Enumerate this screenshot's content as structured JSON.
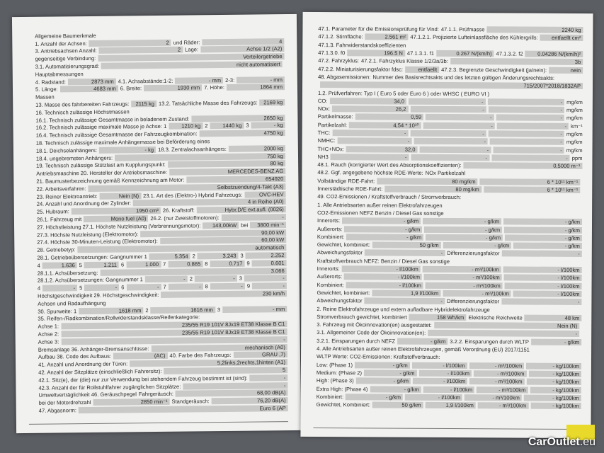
{
  "left_page": [
    [
      {
        "l": "Allgemeine Baumerkmale"
      },
      {
        "l": ""
      }
    ],
    [
      {
        "l": "1. Anzahl der Achsen:"
      },
      {
        "v": "2"
      },
      {
        "l": "und Räder:"
      },
      {
        "v": "4"
      }
    ],
    [
      {
        "l": "3. Antriebsachsen   Anzahl:"
      },
      {
        "v": "2"
      },
      {
        "l": "Lage:"
      },
      {
        "v": "Achse 1/2 (A2)"
      }
    ],
    [
      {
        "l": "gegenseitige Verbindung:"
      },
      {
        "v": "Verteilergetriebe"
      }
    ],
    [
      {
        "l": "3.1. Automatisierungsgrad:"
      },
      {
        "v": "nicht automatisiert"
      },
      {
        "l": "                                                  "
      }
    ],
    [
      {
        "l": "Hauptabmessungen"
      }
    ],
    [
      {
        "l": "4. Radstand:"
      },
      {
        "v": "2873   mm"
      },
      {
        "l": "4.1. Achsabstände:1-2:"
      },
      {
        "v": "-   mm"
      },
      {
        "l": "2-3:"
      },
      {
        "v": "-   mm"
      }
    ],
    [
      {
        "l": "5. Länge:"
      },
      {
        "v": "4683   mm"
      },
      {
        "l": "6. Breite:"
      },
      {
        "v": "1930   mm"
      },
      {
        "l": "7. Höhe:"
      },
      {
        "v": "1864   mm"
      }
    ],
    [
      {
        "l": "Massen"
      }
    ],
    [
      {
        "l": "13. Masse des fahrbereiten Fahrzeugs:"
      },
      {
        "v": "2115   kg"
      },
      {
        "l": "13.2. Tatsächliche Masse des Fahrzeugs:"
      },
      {
        "v": "2169   kg"
      }
    ],
    [
      {
        "l": "16. Technisch zulässige Höchstmassen"
      }
    ],
    [
      {
        "l": "16.1. Technisch zulässige Gesamtmasse in beladenem Zustand:"
      },
      {
        "v": "2650   kg"
      }
    ],
    [
      {
        "l": "16.2. Technisch zulässige maximale Masse je Achse:   1"
      },
      {
        "v": "1210   kg"
      },
      {
        "l": "2"
      },
      {
        "v": "1440   kg"
      },
      {
        "l": "3"
      },
      {
        "v": "-   kg"
      }
    ],
    [
      {
        "l": "16.4. Technisch zulässige Gesamtmasse der Fahrzeugkombination:"
      },
      {
        "v": "4750   kg"
      }
    ],
    [
      {
        "l": "18. Technisch zulässige maximale Anhängemasse bei Beförderung eines"
      }
    ],
    [
      {
        "l": "18.1. Deichselanhängers:"
      },
      {
        "v": "-   kg"
      },
      {
        "l": "18.3. Zentralachsanhängers:"
      },
      {
        "v": "2000   kg"
      }
    ],
    [
      {
        "l": "18.4. ungebremsten Anhängers:"
      },
      {
        "v": "750   kg"
      }
    ],
    [
      {
        "l": "19. Technisch zulässige Stützlast am Kupplungspunkt:"
      },
      {
        "v": "80   kg"
      }
    ],
    [
      {
        "l": "Antriebsmaschine   20. Hersteller der Antriebsmaschine:"
      },
      {
        "v": "MERCEDES-BENZ AG"
      }
    ],
    [
      {
        "l": "21. Baumusterbezeichnung gemäß Kennzeichnung am Motor:"
      },
      {
        "v": "654920"
      }
    ],
    [
      {
        "l": "22. Arbeitsverfahren:"
      },
      {
        "v": "Selbstzuendung/4-Takt (A3)"
      }
    ],
    [
      {
        "l": "23. Reiner Elektroantrieb:"
      },
      {
        "v": "Nein (N)"
      },
      {
        "l": "23.1. Art des (Elektro-) Hybrid Fahrzeugs:"
      },
      {
        "v": "OVC-HEV"
      }
    ],
    [
      {
        "l": "24. Anzahl und Anordnung der Zylinder:"
      },
      {
        "v": "4 in Reihe (A0)"
      }
    ],
    [
      {
        "l": "25. Hubraum:"
      },
      {
        "v": "1950   cm³"
      },
      {
        "l": "26. Kraftstoff:"
      },
      {
        "v": "Hybr.D/E ext.aufl. (0026)"
      }
    ],
    [
      {
        "l": "26.1. Fahrzeug mit"
      },
      {
        "v": "Mono fuel (A0)"
      },
      {
        "l": "26.2. (nur Zweistoffmotoren):"
      },
      {
        "v": "-"
      }
    ],
    [
      {
        "l": "27. Höchstleistung   27.1. Höchste Nutzleistung (Verbrennungsmotor):"
      },
      {
        "v": "143,00kW"
      },
      {
        "l": "bei"
      },
      {
        "v": "3800 min⁻¹"
      }
    ],
    [
      {
        "l": "27.3. Höchste Nutzleistung (Elektromotor):"
      },
      {
        "v": "90,00   kW"
      }
    ],
    [
      {
        "l": "27.4. Höchste 30-Minuten-Leistung (Elektromotor):"
      },
      {
        "v": "60,00   kW"
      }
    ],
    [
      {
        "l": "28. Getriebetyp:"
      },
      {
        "v": "automatisch"
      }
    ],
    [
      {
        "l": "28.1. Getriebeübersetzungen: Gangnummer   1"
      },
      {
        "v": "5.354"
      },
      {
        "l": "2"
      },
      {
        "v": "3.243"
      },
      {
        "l": "3"
      },
      {
        "v": "2.252"
      }
    ],
    [
      {
        "l": "   4"
      },
      {
        "v": "1.636"
      },
      {
        "l": "5"
      },
      {
        "v": "1.211"
      },
      {
        "l": "6"
      },
      {
        "v": "1.000"
      },
      {
        "l": "7"
      },
      {
        "v": "0.865"
      },
      {
        "l": "8"
      },
      {
        "v": "0.717"
      },
      {
        "l": "9"
      },
      {
        "v": "0.601"
      }
    ],
    [
      {
        "l": "28.1.1. Achsübersetzung:"
      },
      {
        "v": "3.066"
      }
    ],
    [
      {
        "l": "28.1.2. Achsübersetzungen: Gangnummer   1"
      },
      {
        "v": "-"
      },
      {
        "l": "2"
      },
      {
        "v": "-"
      },
      {
        "l": "3"
      },
      {
        "v": "-"
      }
    ],
    [
      {
        "l": "   4"
      },
      {
        "v": "-"
      },
      {
        "l": "5"
      },
      {
        "v": "-"
      },
      {
        "l": "6"
      },
      {
        "v": "-"
      },
      {
        "l": "7"
      },
      {
        "v": "-"
      },
      {
        "l": "8"
      },
      {
        "v": "-"
      },
      {
        "l": "9"
      },
      {
        "v": "-"
      }
    ],
    [
      {
        "l": "Höchstgeschwindigkeit   29. Höchstgeschwindigkeit:"
      },
      {
        "v": "230   km/h"
      }
    ],
    [
      {
        "l": "Achsen und Radaufhängung"
      }
    ],
    [
      {
        "l": "30. Spurweite:   1"
      },
      {
        "v": "1618   mm"
      },
      {
        "l": "2"
      },
      {
        "v": "1616   mm"
      },
      {
        "l": "3"
      },
      {
        "v": "-   mm"
      }
    ],
    [
      {
        "l": "35. Reifen-/Radkombination/Rollwiderstandsklasse/Reifenkategorie:"
      }
    ],
    [
      {
        "l": "      Achse 1:"
      },
      {
        "v": "235/55 R19 101V    8Jx19 ET38    Klasse B    C1"
      }
    ],
    [
      {
        "l": "      Achse 2:"
      },
      {
        "v": "235/55 R19 101V    8Jx19 ET38    Klasse B    C1"
      }
    ],
    [
      {
        "l": "      Achse 3:"
      },
      {
        "v": "-"
      }
    ],
    [
      {
        "l": "Bremsanlage   36. Anhänger-Bremsanschlüsse:"
      },
      {
        "v": "mechanisch (A0)"
      }
    ],
    [
      {
        "l": "Aufbau  38. Code des Aufbaus:"
      },
      {
        "v": "(AC)"
      },
      {
        "l": "40. Farbe des Fahrzeugs:"
      },
      {
        "v": "GRAU ,7)"
      }
    ],
    [
      {
        "l": "41. Anzahl und Anordnung der Türen:"
      },
      {
        "v": "5,2links,2rechts,1hinten (A1)"
      }
    ],
    [
      {
        "l": "42. Anzahl der Sitzplätze (einschließlich Fahrersitz):"
      },
      {
        "v": "5"
      }
    ],
    [
      {
        "l": "42.1. Sitz(e), der (die) nur zur Verwendung bei stehendem Fahrzeug bestimmt ist (sind):"
      },
      {
        "v": "-"
      }
    ],
    [
      {
        "l": "42.3. Anzahl der für Rollstuhlfahrer zugänglichen Sitzplätze:"
      },
      {
        "v": "-"
      }
    ],
    [
      {
        "l": "Umweltverträglichkeit      46. Geräuschpegel"
      },
      {
        "l": "Fahrgeräusch:"
      },
      {
        "v": "68,00   dB(A)"
      }
    ],
    [
      {
        "l": "      bei der Motordrehzahl"
      },
      {
        "v": "2850   min⁻¹"
      },
      {
        "l": "Standgeräusch:"
      },
      {
        "v": "76,20   dB(A)"
      }
    ],
    [
      {
        "l": "47. Abgasnorm:"
      },
      {
        "v": "Euro 6 (AP"
      }
    ]
  ],
  "right_page": [
    [
      {
        "l": "47.1. Parameter für die Emissionsprüfung für Vind:"
      },
      {
        "l": "            47.1.1. Prüfmasse"
      },
      {
        "v": "2240   kg"
      }
    ],
    [
      {
        "l": "47.1.2. Stirnfläche:"
      },
      {
        "v": "2.561  m²"
      },
      {
        "l": "47.1.2.1. Projizierte Lufteinlassfläche des Kühlergrills:"
      },
      {
        "v": "entfaellt  cm²"
      }
    ],
    [
      {
        "l": "47.1.3. Fahrwiderstandskoeffizienten"
      }
    ],
    [
      {
        "l": "47.1.3.0. f0"
      },
      {
        "v": "196.5   N"
      },
      {
        "l": "47.1.3.1. f1"
      },
      {
        "v": "0.267  N/(km/h)"
      },
      {
        "l": "47.1.3.2. f2"
      },
      {
        "v": "0.04286  N/(km/h)²"
      }
    ],
    [
      {
        "l": "47.2. Fahrzyklus:"
      },
      {
        "l": "                          47.2.1. Fahrzyklus Klasse 1/2/3a/3b:"
      },
      {
        "v": "3b"
      }
    ],
    [
      {
        "l": "47.2.2. Miniaturisierungsfaktor fdsc:"
      },
      {
        "v": "entfaellt"
      },
      {
        "l": "47.2.3. Begrenzte Geschwindigkeit (ja/nein):"
      },
      {
        "v": "nein"
      }
    ],
    [
      {
        "l": "48. Abgasemissionen:"
      },
      {
        "l": "      Nummer des Basisrechtsakts und des letzten gültigen Änderungsrechtsakts:"
      }
    ],
    [
      {
        "l": "                                                                                       "
      },
      {
        "v": "715/2007*2018/1832AP"
      }
    ],
    [
      {
        "l": "1.2. Prüfverfahren: Typ I ( Euro 5 oder Euro 6 ) oder WHSC ( EURO VI )"
      }
    ],
    [
      {
        "l": "   CO:                  "
      },
      {
        "v": "34,0"
      },
      {
        "v": "-"
      },
      {
        "v": "-"
      },
      {
        "l": "mg/km          "
      }
    ],
    [
      {
        "l": "   NOx:                 "
      },
      {
        "v": "26,2"
      },
      {
        "v": "-"
      },
      {
        "v": "-"
      },
      {
        "l": "mg/km          "
      }
    ],
    [
      {
        "l": "   Partikelmasse:   "
      },
      {
        "v": "0,59"
      },
      {
        "v": "-"
      },
      {
        "v": "-"
      },
      {
        "l": "mg/km          "
      }
    ],
    [
      {
        "l": "   Partikelzahl:      "
      },
      {
        "v": "4,54 * 10¹⁰"
      },
      {
        "v": "-"
      },
      {
        "v": "-"
      },
      {
        "l": "km⁻¹             "
      }
    ],
    [
      {
        "l": "   THC:                "
      },
      {
        "v": "-"
      },
      {
        "v": "-"
      },
      {
        "v": "-"
      },
      {
        "l": "mg/km          "
      }
    ],
    [
      {
        "l": "   NMHC:              "
      },
      {
        "v": "-"
      },
      {
        "v": "-"
      },
      {
        "v": "-"
      },
      {
        "l": "mg/km          "
      }
    ],
    [
      {
        "l": "   THC+NOx:          "
      },
      {
        "v": "32,0"
      },
      {
        "v": "-"
      },
      {
        "v": "-"
      },
      {
        "l": "mg/km          "
      }
    ],
    [
      {
        "l": "   NH3                  "
      },
      {
        "v": "-"
      },
      {
        "v": "-"
      },
      {
        "v": "-"
      },
      {
        "l": "ppm              "
      }
    ],
    [
      {
        "l": "48.1. Rauch (korrigierter Wert des Absorptionskoeffizienten):"
      },
      {
        "v": "0,5000   m⁻¹"
      }
    ],
    [
      {
        "l": "48.2. Ggf. angegebene höchste RDE-Werte:"
      },
      {
        "l": "                 NOx                          Partikelzahl"
      }
    ],
    [
      {
        "l": "   Vollständige RDE-Fahrt:                              "
      },
      {
        "v": "80   mg/km"
      },
      {
        "v": "6 * 10¹¹   km⁻¹"
      },
      {
        "l": "          "
      }
    ],
    [
      {
        "l": "   Innerstädtische RDE-Fahrt:                          "
      },
      {
        "v": "80   mg/km"
      },
      {
        "v": "6 * 10¹¹   km⁻¹"
      },
      {
        "l": "          "
      }
    ],
    [
      {
        "l": "49. CO2-Emissionen / Kraftstoffverbrauch / Stromverbrauch:"
      }
    ],
    [
      {
        "l": "   1. Alle Antriebsarten außer reinen Elektrofahrzeugen"
      }
    ],
    [
      {
        "l": "   CO2-Emissionen NEFZ          Benzin / Diesel                              Gas                                   sonstige"
      }
    ],
    [
      {
        "l": "   Innerorts:                  "
      },
      {
        "v": "-   g/km"
      },
      {
        "v": "-   g/km"
      },
      {
        "v": "-   g/km"
      }
    ],
    [
      {
        "l": "   Außerorts:                  "
      },
      {
        "v": "-   g/km"
      },
      {
        "v": "-   g/km"
      },
      {
        "v": "-   g/km"
      }
    ],
    [
      {
        "l": "   Kombiniert:                 "
      },
      {
        "v": "-   g/km"
      },
      {
        "v": "-   g/km"
      },
      {
        "v": "-   g/km"
      }
    ],
    [
      {
        "l": "   Gewichtet, kombiniert:  "
      },
      {
        "v": "50   g/km"
      },
      {
        "v": "-   g/km"
      },
      {
        "v": "-   g/km"
      }
    ],
    [
      {
        "l": "   Abweichungsfaktor        "
      },
      {
        "v": "-"
      },
      {
        "l": "   Differenzierungsfaktor      "
      },
      {
        "v": "-"
      }
    ],
    [
      {
        "l": "   Kraftstoffverbrauch NEFZ:       Benzin / Diesel                              Gas                                   sonstige"
      }
    ],
    [
      {
        "l": "   Innerorts:                  "
      },
      {
        "v": "-   l/100km"
      },
      {
        "v": "-   m³/100km"
      },
      {
        "v": "-   l/100km"
      }
    ],
    [
      {
        "l": "   Außerorts:                  "
      },
      {
        "v": "-   l/100km"
      },
      {
        "v": "-   m³/100km"
      },
      {
        "v": "-   l/100km"
      }
    ],
    [
      {
        "l": "   Kombiniert:                 "
      },
      {
        "v": "-   l/100km"
      },
      {
        "v": "-   m³/100km"
      },
      {
        "v": "-   l/100km"
      }
    ],
    [
      {
        "l": "   Gewichtet, kombiniert:  "
      },
      {
        "v": "1,9   l/100km"
      },
      {
        "v": "-   m³/100km"
      },
      {
        "v": "-   l/100km"
      }
    ],
    [
      {
        "l": "   Abweichungsfaktor        "
      },
      {
        "v": "-"
      },
      {
        "l": "   Differenzierungsfaktor      "
      },
      {
        "v": "-"
      }
    ],
    [
      {
        "l": "   2. Reine Elektrofahrzeuge und extern aufladbare Hybridelektrofahrzeuge"
      }
    ],
    [
      {
        "l": "      Stromverbrauch   gewichtet, kombiniert"
      },
      {
        "v": "158   Wh/km"
      },
      {
        "l": "Elektrische Reichweite"
      },
      {
        "v": "48   km"
      }
    ],
    [
      {
        "l": "   3. Fahrzeug mit Ökoinnovation(en) ausgestattet:"
      },
      {
        "v": "Nein (N)"
      },
      {
        "l": "                        "
      }
    ],
    [
      {
        "l": "   3.1. Allgemeiner Code der Ökoinnovation(en):"
      },
      {
        "v": "-"
      },
      {
        "l": "                        "
      }
    ],
    [
      {
        "l": "   3.2.1. Einsparungen durch NEFZ"
      },
      {
        "v": "-   g/km"
      },
      {
        "l": "3.2.2. Einsparungen durch WLTP"
      },
      {
        "v": "-   g/km"
      }
    ],
    [
      {
        "l": "   4. Alle Antriebsarten außer reinen Elektrofahrzeugen, gemäß Verordnung (EU) 2017/1151"
      }
    ],
    [
      {
        "l": "   WLTP Werte:              CO2-Emissionen:      Kraftstoffverbrauch:"
      }
    ],
    [
      {
        "l": "   Low: (Phase 1)             "
      },
      {
        "v": "-   g/km"
      },
      {
        "v": "-   l/100km"
      },
      {
        "v": "-   m³/100km"
      },
      {
        "v": "-   kg/100km"
      }
    ],
    [
      {
        "l": "   Medium: (Phase 2)        "
      },
      {
        "v": "-   g/km"
      },
      {
        "v": "-   l/100km"
      },
      {
        "v": "-   m³/100km"
      },
      {
        "v": "-   kg/100km"
      }
    ],
    [
      {
        "l": "   High: (Phase 3)            "
      },
      {
        "v": "-   g/km"
      },
      {
        "v": "-   l/100km"
      },
      {
        "v": "-   m³/100km"
      },
      {
        "v": "-   kg/100km"
      }
    ],
    [
      {
        "l": "   Extra High: (Phase 4)    "
      },
      {
        "v": "-   g/km"
      },
      {
        "v": "-   l/100km"
      },
      {
        "v": "-   m³/100km"
      },
      {
        "v": "-   kg/100km"
      }
    ],
    [
      {
        "l": "   Kombiniert:                 "
      },
      {
        "v": "-   g/km"
      },
      {
        "v": "-   l/100km"
      },
      {
        "v": "-   m³/100km"
      },
      {
        "v": "-   kg/100km"
      }
    ],
    [
      {
        "l": "   Gewichtet, Kombiniert:   "
      },
      {
        "v": "50   g/km"
      },
      {
        "v": "1,9   l/100km"
      },
      {
        "v": "-   m³/100km"
      },
      {
        "v": "-   kg/100km"
      }
    ]
  ],
  "watermark": {
    "brand": "CarOutlet",
    "tld": ".eu"
  },
  "colors": {
    "background": "#5b5e63",
    "paper": "#f1f1ef",
    "field": "#c9c9c7",
    "binder": "#e9d92a"
  }
}
